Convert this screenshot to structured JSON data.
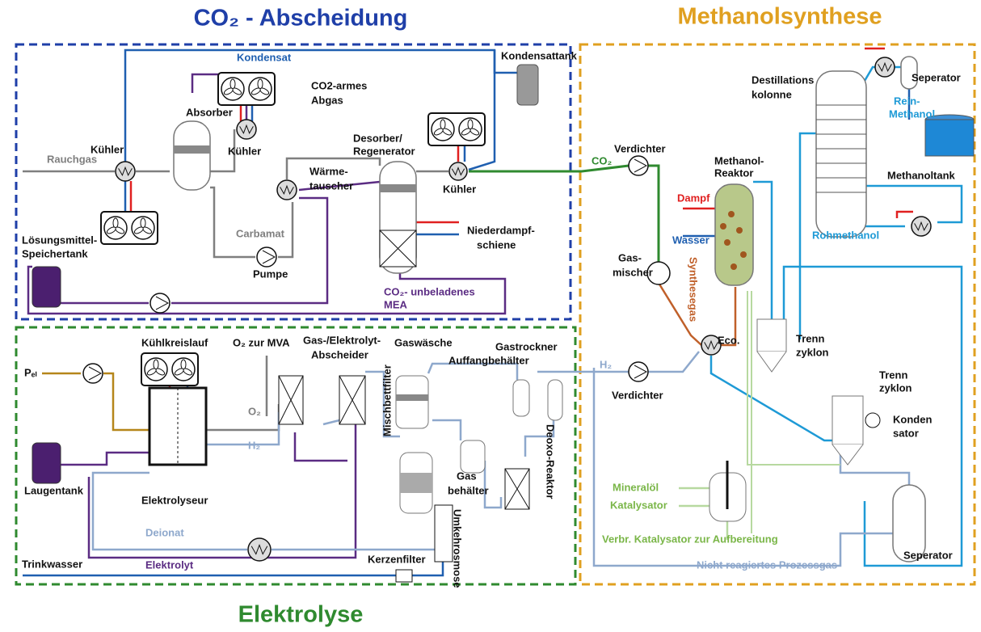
{
  "titles": [
    "CO₂ - Abscheidung",
    "Methanolsynthese",
    "Elektrolyse"
  ],
  "labels": [
    "Kondensat",
    "Kondensattank",
    "CO2-armes",
    "Abgas",
    "Absorber",
    "Rauchgas",
    "Kühler",
    "Kühler",
    "Desorber/",
    "Regenerator",
    "Wärme-",
    "tauscher",
    "Kühler",
    "Carbamat",
    "Niederdampf-",
    "schiene",
    "Lösungsmittel-",
    "Speichertank",
    "Pumpe",
    "CO₂- unbeladenes",
    "MEA",
    "Verdichter",
    "CO₂",
    "Methanol-",
    "Reaktor",
    "Dampf",
    "Wasser",
    "Gas-",
    "mischer",
    "Synthesegas",
    "Eco.",
    "Trenn",
    "zyklon",
    "Destillations",
    "kolonne",
    "Seperator",
    "Rein-",
    "Methanol",
    "Methanoltank",
    "Rohmethanol",
    "H₂",
    "Verdichter",
    "Trenn",
    "zyklon",
    "Konden",
    "sator",
    "Mineralöl",
    "Katalysator",
    "Verbr. Katalysator zur Aufbereitung",
    "Seperator",
    "Nicht reagiertes Prozessgas",
    "Kühlkreislauf",
    "O₂ zur MVA",
    "Gas-/Elektrolyt-",
    "Abscheider",
    "Gaswäsche",
    "Gastrockner",
    "Auffangbehälter",
    "Pₑₗ",
    "O₂",
    "H₂",
    "Laugentank",
    "Elektrolyseur",
    "Gas",
    "behälter",
    "Mischbettfilter",
    "Deoxo-Reaktor",
    "Deionat",
    "Umkehrosmose",
    "Trinkwasser",
    "Elektrolyt",
    "Kerzenfilter"
  ]
}
